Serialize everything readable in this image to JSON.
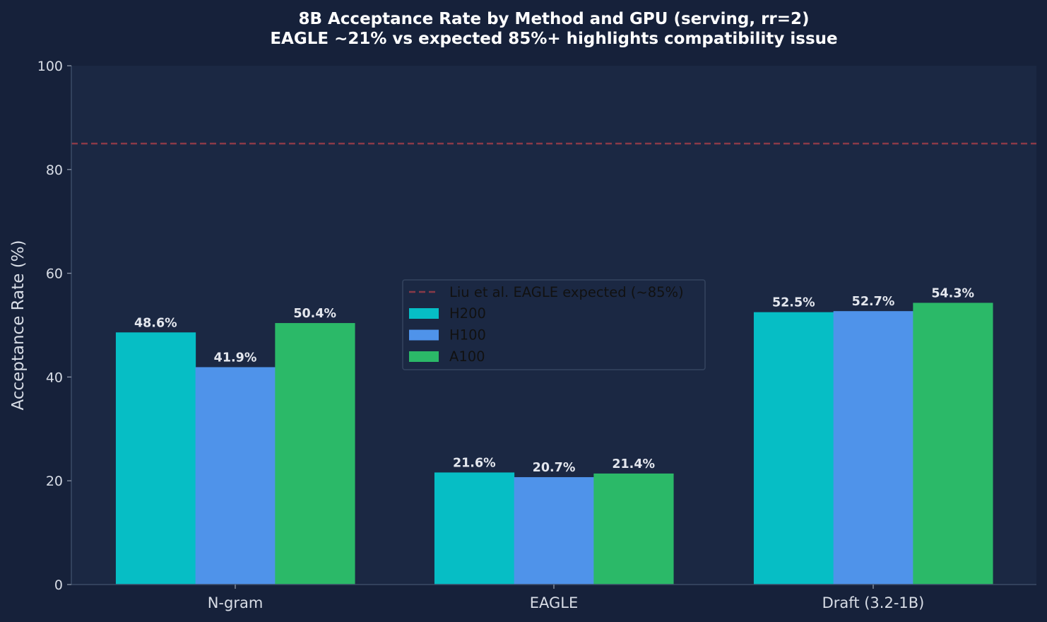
{
  "colors": {
    "figure_bg": "#16213a",
    "plot_bg": "#1b2843",
    "axis": "#3b4a66",
    "reference_line": "#8a3a48",
    "legend_bg": "#1b2843",
    "legend_border": "#34445f"
  },
  "chart_data": {
    "type": "bar",
    "title_line1": "8B Acceptance Rate by Method and GPU (serving, rr=2)",
    "title_line2": "EAGLE ~21% vs expected 85%+ highlights compatibility issue",
    "xlabel": "",
    "ylabel": "Acceptance Rate (%)",
    "ylim": [
      0,
      100
    ],
    "yticks": [
      "0",
      "20",
      "40",
      "60",
      "80",
      "100"
    ],
    "categories": [
      "N-gram",
      "EAGLE",
      "Draft (3.2-1B)"
    ],
    "series": [
      {
        "name": "H200",
        "color": "#06bec5",
        "values": [
          48.6,
          21.6,
          52.5
        ],
        "labels": [
          "48.6%",
          "21.6%",
          "52.5%"
        ]
      },
      {
        "name": "H100",
        "color": "#4f93ea",
        "values": [
          41.9,
          20.7,
          52.7
        ],
        "labels": [
          "41.9%",
          "20.7%",
          "52.7%"
        ]
      },
      {
        "name": "A100",
        "color": "#2bb968",
        "values": [
          50.4,
          21.4,
          54.3
        ],
        "labels": [
          "50.4%",
          "21.4%",
          "54.3%"
        ]
      }
    ],
    "reference_line": {
      "value": 85,
      "label": "Liu et al. EAGLE expected (~85%)",
      "style": "dashed"
    },
    "legend_position": "center",
    "grid": false
  }
}
